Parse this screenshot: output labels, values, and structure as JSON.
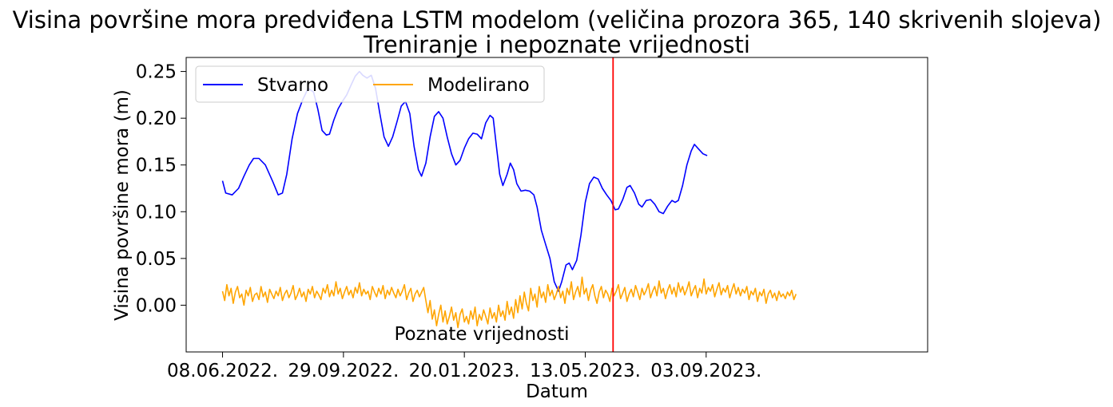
{
  "chart_data": {
    "type": "line",
    "title": "Visina površine mora predviđena LSTM modelom (veličina prozora 365, 140 skrivenih slojeva)",
    "subtitle": "Treniranje i nepoznate vrijednosti",
    "xlabel": "Datum",
    "ylabel": "Visina površine mora (m)",
    "x_range": [
      "2022-05-05",
      "2024-03-28"
    ],
    "ylim": [
      -0.05,
      0.265
    ],
    "x_ticks": [
      {
        "date": "2022-06-08",
        "label": "08.06.2022."
      },
      {
        "date": "2022-09-29",
        "label": "29.09.2022."
      },
      {
        "date": "2023-01-20",
        "label": "20.01.2023."
      },
      {
        "date": "2023-05-13",
        "label": "13.05.2023."
      },
      {
        "date": "2023-09-03",
        "label": "03.09.2023."
      }
    ],
    "y_ticks": [
      {
        "value": 0.25,
        "label": "0.25"
      },
      {
        "value": 0.2,
        "label": "0.20"
      },
      {
        "value": 0.15,
        "label": "0.15"
      },
      {
        "value": 0.1,
        "label": "0.10"
      },
      {
        "value": 0.05,
        "label": "0.05"
      },
      {
        "value": 0.0,
        "label": "0.00"
      }
    ],
    "grid": false,
    "legend": {
      "placement": "top-left",
      "columns": 2
    },
    "vline": {
      "date": "2023-06-08",
      "color": "#ff0000"
    },
    "annotation": {
      "text": "Poznate vrijednosti",
      "date": "2022-11-29",
      "y": -0.028
    },
    "series": [
      {
        "name": "Stvarno",
        "color": "#0000ff",
        "points": [
          [
            "2022-06-08",
            0.133
          ],
          [
            "2022-06-11",
            0.12
          ],
          [
            "2022-06-17",
            0.118
          ],
          [
            "2022-06-23",
            0.125
          ],
          [
            "2022-06-28",
            0.138
          ],
          [
            "2022-07-03",
            0.15
          ],
          [
            "2022-07-07",
            0.157
          ],
          [
            "2022-07-12",
            0.157
          ],
          [
            "2022-07-18",
            0.15
          ],
          [
            "2022-07-25",
            0.132
          ],
          [
            "2022-07-30",
            0.118
          ],
          [
            "2022-08-03",
            0.12
          ],
          [
            "2022-08-07",
            0.14
          ],
          [
            "2022-08-12",
            0.178
          ],
          [
            "2022-08-17",
            0.205
          ],
          [
            "2022-08-22",
            0.22
          ],
          [
            "2022-08-27",
            0.232
          ],
          [
            "2022-09-01",
            0.228
          ],
          [
            "2022-09-05",
            0.21
          ],
          [
            "2022-09-09",
            0.187
          ],
          [
            "2022-09-13",
            0.182
          ],
          [
            "2022-09-16",
            0.183
          ],
          [
            "2022-09-20",
            0.198
          ],
          [
            "2022-09-24",
            0.21
          ],
          [
            "2022-09-28",
            0.218
          ],
          [
            "2022-10-02",
            0.225
          ],
          [
            "2022-10-06",
            0.235
          ],
          [
            "2022-10-10",
            0.245
          ],
          [
            "2022-10-14",
            0.25
          ],
          [
            "2022-10-17",
            0.246
          ],
          [
            "2022-10-21",
            0.243
          ],
          [
            "2022-10-25",
            0.246
          ],
          [
            "2022-10-29",
            0.232
          ],
          [
            "2022-11-02",
            0.205
          ],
          [
            "2022-11-06",
            0.18
          ],
          [
            "2022-11-10",
            0.17
          ],
          [
            "2022-11-14",
            0.18
          ],
          [
            "2022-11-18",
            0.196
          ],
          [
            "2022-11-22",
            0.213
          ],
          [
            "2022-11-26",
            0.218
          ],
          [
            "2022-11-30",
            0.205
          ],
          [
            "2022-12-04",
            0.17
          ],
          [
            "2022-12-08",
            0.145
          ],
          [
            "2022-12-11",
            0.138
          ],
          [
            "2022-12-15",
            0.152
          ],
          [
            "2022-12-19",
            0.18
          ],
          [
            "2022-12-23",
            0.202
          ],
          [
            "2022-12-27",
            0.207
          ],
          [
            "2022-12-31",
            0.2
          ],
          [
            "2023-01-04",
            0.18
          ],
          [
            "2023-01-08",
            0.162
          ],
          [
            "2023-01-12",
            0.15
          ],
          [
            "2023-01-16",
            0.155
          ],
          [
            "2023-01-20",
            0.168
          ],
          [
            "2023-01-24",
            0.178
          ],
          [
            "2023-01-28",
            0.184
          ],
          [
            "2023-02-01",
            0.183
          ],
          [
            "2023-02-05",
            0.178
          ],
          [
            "2023-02-09",
            0.195
          ],
          [
            "2023-02-13",
            0.203
          ],
          [
            "2023-02-16",
            0.2
          ],
          [
            "2023-02-19",
            0.17
          ],
          [
            "2023-02-22",
            0.14
          ],
          [
            "2023-02-25",
            0.128
          ],
          [
            "2023-03-01",
            0.14
          ],
          [
            "2023-03-04",
            0.152
          ],
          [
            "2023-03-07",
            0.145
          ],
          [
            "2023-03-10",
            0.13
          ],
          [
            "2023-03-14",
            0.122
          ],
          [
            "2023-03-18",
            0.123
          ],
          [
            "2023-03-22",
            0.122
          ],
          [
            "2023-03-26",
            0.118
          ],
          [
            "2023-03-29",
            0.105
          ],
          [
            "2023-04-02",
            0.08
          ],
          [
            "2023-04-06",
            0.065
          ],
          [
            "2023-04-10",
            0.05
          ],
          [
            "2023-04-14",
            0.025
          ],
          [
            "2023-04-18",
            0.015
          ],
          [
            "2023-04-21",
            0.025
          ],
          [
            "2023-04-25",
            0.043
          ],
          [
            "2023-04-28",
            0.045
          ],
          [
            "2023-05-01",
            0.038
          ],
          [
            "2023-05-05",
            0.048
          ],
          [
            "2023-05-09",
            0.075
          ],
          [
            "2023-05-13",
            0.11
          ],
          [
            "2023-05-17",
            0.13
          ],
          [
            "2023-05-21",
            0.137
          ],
          [
            "2023-05-25",
            0.135
          ],
          [
            "2023-05-29",
            0.125
          ],
          [
            "2023-06-02",
            0.118
          ],
          [
            "2023-06-06",
            0.112
          ],
          [
            "2023-06-10",
            0.102
          ],
          [
            "2023-06-13",
            0.103
          ],
          [
            "2023-06-17",
            0.113
          ],
          [
            "2023-06-21",
            0.126
          ],
          [
            "2023-06-24",
            0.128
          ],
          [
            "2023-06-28",
            0.12
          ],
          [
            "2023-07-02",
            0.108
          ],
          [
            "2023-07-05",
            0.105
          ],
          [
            "2023-07-09",
            0.112
          ],
          [
            "2023-07-13",
            0.113
          ],
          [
            "2023-07-17",
            0.108
          ],
          [
            "2023-07-21",
            0.1
          ],
          [
            "2023-07-25",
            0.098
          ],
          [
            "2023-07-29",
            0.106
          ],
          [
            "2023-08-02",
            0.112
          ],
          [
            "2023-08-05",
            0.11
          ],
          [
            "2023-08-08",
            0.112
          ],
          [
            "2023-08-12",
            0.128
          ],
          [
            "2023-08-16",
            0.15
          ],
          [
            "2023-08-20",
            0.165
          ],
          [
            "2023-08-23",
            0.172
          ],
          [
            "2023-08-27",
            0.167
          ],
          [
            "2023-08-31",
            0.162
          ],
          [
            "2023-09-04",
            0.16
          ]
        ]
      },
      {
        "name": "Modelirano",
        "color": "#ffa500",
        "start": "2022-06-08",
        "step_days": 2,
        "values": [
          0.015,
          0.005,
          0.022,
          0.01,
          0.018,
          0.002,
          0.014,
          0.02,
          0.008,
          0.012,
          0.0,
          0.016,
          0.01,
          0.019,
          0.004,
          0.011,
          0.013,
          0.006,
          0.02,
          0.009,
          0.014,
          0.003,
          0.017,
          0.012,
          0.007,
          0.015,
          0.01,
          0.019,
          0.005,
          0.012,
          0.016,
          0.008,
          0.013,
          0.021,
          0.006,
          0.011,
          0.018,
          0.009,
          0.014,
          0.004,
          0.017,
          0.012,
          0.02,
          0.008,
          0.015,
          0.011,
          0.006,
          0.018,
          0.013,
          0.022,
          0.009,
          0.016,
          0.01,
          0.025,
          0.012,
          0.018,
          0.007,
          0.014,
          0.02,
          0.011,
          0.016,
          0.008,
          0.019,
          0.013,
          0.024,
          0.01,
          0.017,
          0.012,
          0.015,
          0.006,
          0.02,
          0.014,
          0.009,
          0.018,
          0.012,
          0.021,
          0.007,
          0.016,
          0.011,
          0.019,
          0.013,
          0.008,
          0.017,
          0.01,
          0.015,
          0.022,
          0.006,
          0.013,
          0.018,
          0.004,
          0.012,
          0.016,
          0.009,
          0.014,
          0.019,
          0.005,
          -0.008,
          0.005,
          -0.015,
          -0.005,
          -0.022,
          -0.01,
          0.0,
          -0.018,
          -0.006,
          -0.02,
          -0.012,
          -0.002,
          -0.016,
          -0.008,
          -0.024,
          -0.01,
          -0.004,
          -0.018,
          -0.012,
          -0.02,
          -0.006,
          -0.015,
          -0.002,
          -0.022,
          -0.01,
          -0.016,
          -0.005,
          -0.012,
          -0.02,
          -0.003,
          -0.014,
          -0.008,
          -0.018,
          0.0,
          -0.012,
          -0.006,
          -0.016,
          0.004,
          -0.01,
          -0.002,
          -0.014,
          0.006,
          -0.008,
          0.01,
          -0.004,
          0.014,
          0.002,
          -0.006,
          0.018,
          0.005,
          0.012,
          -0.002,
          0.02,
          0.008,
          0.014,
          0.003,
          0.022,
          0.01,
          0.016,
          0.006,
          0.012,
          0.02,
          0.008,
          0.015,
          0.002,
          0.018,
          0.011,
          0.025,
          0.006,
          0.014,
          0.02,
          0.009,
          0.03,
          0.012,
          0.018,
          0.005,
          0.016,
          0.022,
          0.01,
          0.002,
          0.014,
          0.02,
          0.008,
          0.016,
          0.012,
          0.004,
          0.018,
          0.01,
          0.015,
          0.022,
          0.007,
          0.013,
          0.019,
          0.004,
          0.012,
          0.017,
          0.009,
          0.021,
          0.014,
          0.006,
          0.018,
          0.011,
          0.016,
          0.023,
          0.008,
          0.015,
          0.02,
          0.01,
          0.026,
          0.013,
          0.018,
          0.007,
          0.016,
          0.022,
          0.012,
          0.019,
          0.009,
          0.024,
          0.014,
          0.02,
          0.011,
          0.017,
          0.025,
          0.01,
          0.016,
          0.021,
          0.008,
          0.018,
          0.013,
          0.028,
          0.012,
          0.019,
          0.015,
          0.022,
          0.009,
          0.017,
          0.024,
          0.011,
          0.018,
          0.014,
          0.021,
          0.008,
          0.016,
          0.023,
          0.012,
          0.019,
          0.01,
          0.017,
          0.013,
          0.02,
          0.006,
          0.015,
          0.011,
          0.018,
          0.004,
          0.014,
          0.01,
          0.017,
          0.002,
          0.012,
          0.016,
          0.008,
          0.013,
          0.005,
          0.015,
          0.009,
          0.012,
          0.007,
          0.014,
          0.01,
          0.016,
          0.006,
          0.012
        ]
      }
    ]
  }
}
